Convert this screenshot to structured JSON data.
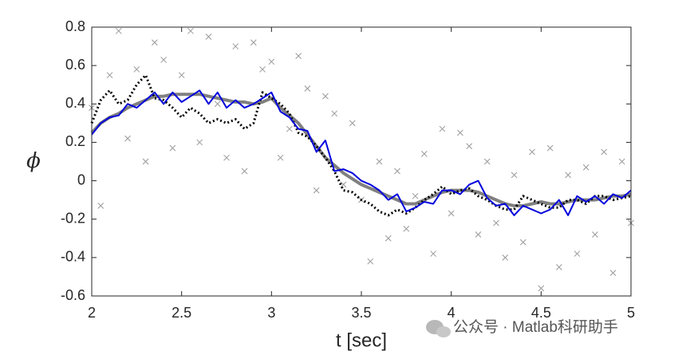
{
  "chart_data": {
    "type": "line",
    "xlabel": "t [sec]",
    "ylabel": "ϕ",
    "x": [
      2.0,
      2.05,
      2.1,
      2.15,
      2.2,
      2.25,
      2.3,
      2.35,
      2.4,
      2.45,
      2.5,
      2.55,
      2.6,
      2.65,
      2.7,
      2.75,
      2.8,
      2.85,
      2.9,
      2.95,
      3.0,
      3.05,
      3.1,
      3.15,
      3.2,
      3.25,
      3.3,
      3.35,
      3.4,
      3.45,
      3.5,
      3.55,
      3.6,
      3.65,
      3.7,
      3.75,
      3.8,
      3.85,
      3.9,
      3.95,
      4.0,
      4.05,
      4.1,
      4.15,
      4.2,
      4.25,
      4.3,
      4.35,
      4.4,
      4.45,
      4.5,
      4.55,
      4.6,
      4.65,
      4.7,
      4.75,
      4.8,
      4.85,
      4.9,
      4.95,
      5.0
    ],
    "series": [
      {
        "style": "scatter",
        "color": "#999999",
        "values": [
          0.38,
          -0.13,
          0.55,
          0.78,
          0.22,
          0.58,
          0.1,
          0.72,
          0.63,
          0.17,
          0.55,
          0.78,
          0.2,
          0.75,
          0.4,
          0.12,
          0.7,
          0.05,
          0.72,
          0.58,
          0.62,
          0.12,
          0.27,
          0.65,
          0.48,
          -0.05,
          0.44,
          0.35,
          -0.02,
          0.3,
          -0.1,
          -0.42,
          0.1,
          -0.3,
          0.05,
          -0.25,
          -0.08,
          0.14,
          -0.38,
          0.27,
          -0.17,
          0.25,
          0.18,
          -0.28,
          0.1,
          -0.22,
          -0.4,
          0.03,
          -0.32,
          0.15,
          -0.56,
          0.17,
          -0.45,
          0.03,
          -0.38,
          0.07,
          -0.28,
          0.15,
          -0.48,
          0.1,
          -0.22
        ]
      },
      {
        "style": "solid",
        "color": "#808080",
        "width": 4,
        "values": [
          0.25,
          0.3,
          0.33,
          0.35,
          0.38,
          0.4,
          0.42,
          0.44,
          0.44,
          0.45,
          0.45,
          0.45,
          0.45,
          0.44,
          0.43,
          0.42,
          0.41,
          0.41,
          0.4,
          0.41,
          0.43,
          0.38,
          0.34,
          0.3,
          0.24,
          0.18,
          0.12,
          0.08,
          0.04,
          0.01,
          -0.02,
          -0.04,
          -0.06,
          -0.08,
          -0.1,
          -0.12,
          -0.12,
          -0.1,
          -0.08,
          -0.06,
          -0.05,
          -0.05,
          -0.05,
          -0.06,
          -0.08,
          -0.1,
          -0.12,
          -0.13,
          -0.13,
          -0.12,
          -0.11,
          -0.12,
          -0.12,
          -0.11,
          -0.1,
          -0.1,
          -0.1,
          -0.09,
          -0.08,
          -0.08,
          -0.07
        ]
      },
      {
        "style": "dotted",
        "color": "#000000",
        "width": 3,
        "values": [
          0.3,
          0.42,
          0.47,
          0.4,
          0.42,
          0.5,
          0.55,
          0.43,
          0.42,
          0.38,
          0.33,
          0.38,
          0.35,
          0.3,
          0.32,
          0.3,
          0.32,
          0.27,
          0.3,
          0.46,
          0.43,
          0.4,
          0.35,
          0.25,
          0.23,
          0.18,
          0.12,
          0.05,
          -0.05,
          -0.06,
          -0.1,
          -0.12,
          -0.16,
          -0.18,
          -0.15,
          -0.17,
          -0.14,
          -0.1,
          -0.07,
          -0.03,
          -0.07,
          -0.05,
          -0.04,
          -0.08,
          -0.1,
          -0.13,
          -0.15,
          -0.15,
          -0.08,
          -0.1,
          -0.12,
          -0.14,
          -0.14,
          -0.1,
          -0.1,
          -0.12,
          -0.08,
          -0.08,
          -0.1,
          -0.09,
          -0.08
        ]
      },
      {
        "style": "solid",
        "color": "#0000dd",
        "width": 2,
        "values": [
          0.24,
          0.3,
          0.33,
          0.34,
          0.4,
          0.38,
          0.42,
          0.46,
          0.4,
          0.46,
          0.41,
          0.44,
          0.47,
          0.4,
          0.46,
          0.38,
          0.42,
          0.38,
          0.4,
          0.43,
          0.46,
          0.36,
          0.33,
          0.27,
          0.26,
          0.15,
          0.21,
          0.05,
          0.06,
          0.04,
          0.0,
          -0.02,
          -0.05,
          -0.1,
          -0.07,
          -0.16,
          -0.14,
          -0.11,
          -0.12,
          -0.05,
          -0.05,
          -0.07,
          -0.02,
          0.0,
          -0.09,
          -0.13,
          -0.12,
          -0.18,
          -0.13,
          -0.15,
          -0.17,
          -0.15,
          -0.1,
          -0.18,
          -0.08,
          -0.11,
          -0.08,
          -0.12,
          -0.07,
          -0.09,
          -0.05
        ]
      }
    ],
    "xlim": [
      2,
      5
    ],
    "ylim": [
      -0.6,
      0.8
    ],
    "xticks": [
      2,
      2.5,
      3,
      3.5,
      4,
      4.5,
      5
    ],
    "yticks": [
      -0.6,
      -0.4,
      -0.2,
      0,
      0.2,
      0.4,
      0.6,
      0.8
    ]
  },
  "watermark": "公众号 · Matlab科研助手"
}
